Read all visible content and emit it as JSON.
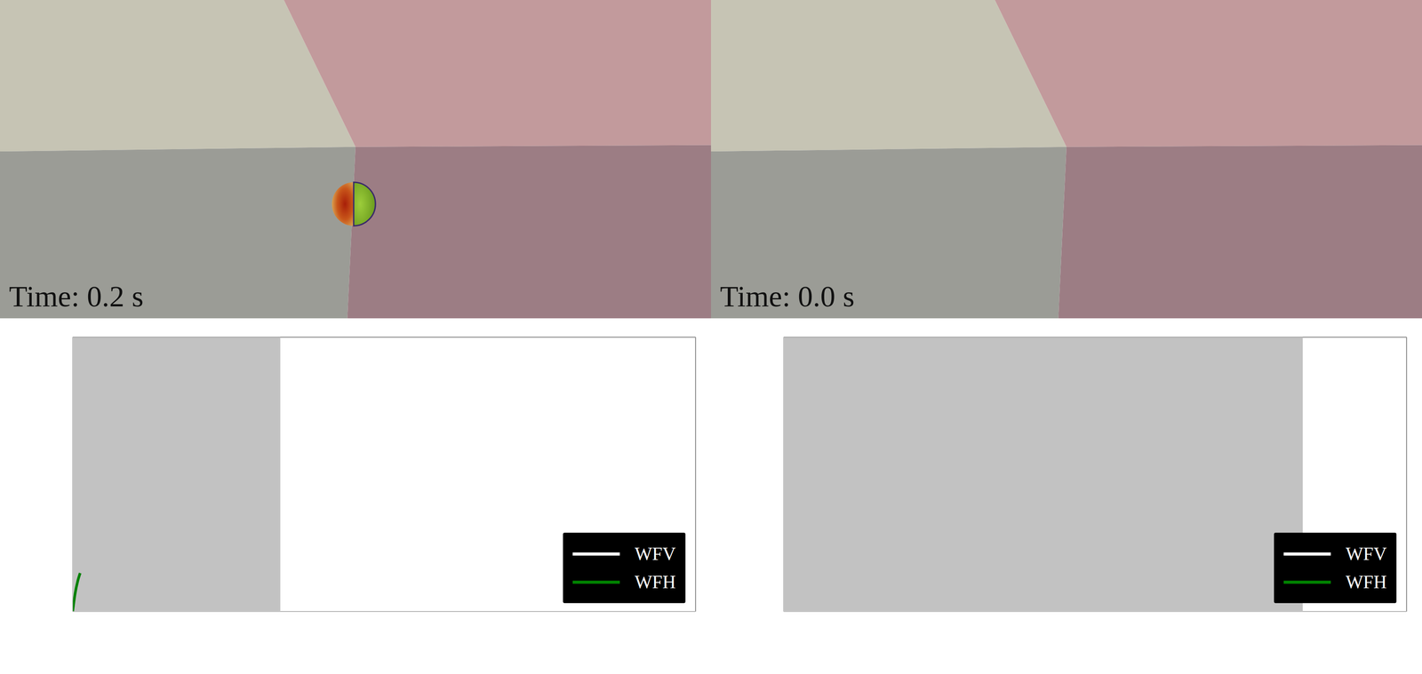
{
  "renders": [
    {
      "label": "Time: 0.2 s"
    },
    {
      "label": "Time: 0.0 s"
    }
  ],
  "chart_data": [
    {
      "type": "line",
      "x": [
        0,
        0.003,
        0.006,
        0.009
      ],
      "series": [
        {
          "name": "WFV",
          "color": "#ffffff",
          "values": [
            null,
            null,
            null,
            null
          ]
        },
        {
          "name": "WFH",
          "color": "#008000",
          "values": [
            0,
            0.2,
            0.33,
            0.42
          ]
        }
      ],
      "xlim": [
        0,
        0.75
      ],
      "xticks": [
        0,
        0.1,
        0.2,
        0.3,
        0.4,
        0.5,
        0.6,
        0.7
      ],
      "ylim": [
        0,
        3
      ],
      "yticks": [
        0,
        1,
        2,
        3
      ],
      "grid": true,
      "legend": "lower right",
      "tick_labels": false,
      "shaded_region": [
        0,
        0.25
      ]
    },
    {
      "type": "line",
      "x": [],
      "series": [
        {
          "name": "WFV",
          "color": "#ffffff",
          "values": []
        },
        {
          "name": "WFH",
          "color": "#008000",
          "values": []
        }
      ],
      "xlim": [
        0,
        0.6
      ],
      "xticks": [
        0,
        0.1,
        0.2,
        0.3,
        0.4,
        0.5,
        0.6
      ],
      "ylim": [
        0,
        3
      ],
      "yticks": [
        0,
        1,
        2,
        3
      ],
      "grid": true,
      "legend": "lower right",
      "tick_labels": false,
      "shaded_region": [
        0,
        0.5
      ]
    }
  ]
}
